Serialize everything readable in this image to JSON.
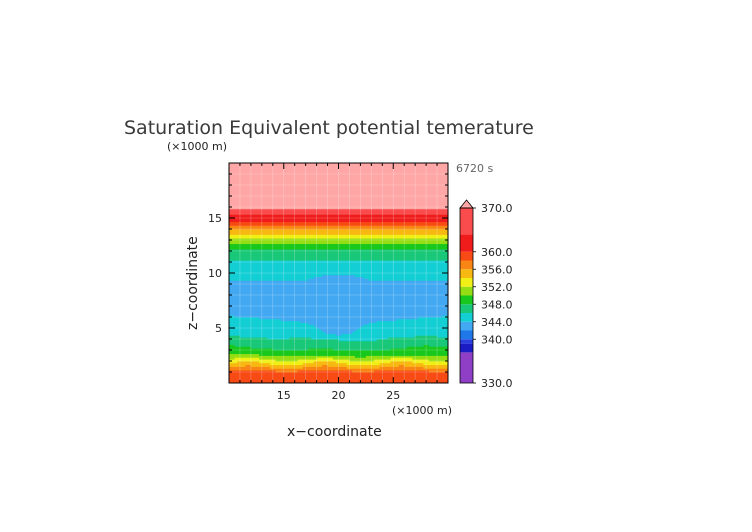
{
  "chart_data": {
    "type": "heatmap",
    "title": "Saturation Equivalent potential temerature",
    "xlabel": "x−coordinate",
    "ylabel": "z−coordinate",
    "x_unit": "(×1000 m)",
    "y_unit": "(×1000 m)",
    "time_label": "6720 s",
    "xlim": [
      10,
      30
    ],
    "ylim": [
      0,
      20
    ],
    "x_ticks": [
      15,
      20,
      25
    ],
    "y_ticks": [
      5,
      10,
      15
    ],
    "grid": true,
    "colorbar": {
      "labels": [
        "370.0",
        "360.0",
        "356.0",
        "352.0",
        "348.0",
        "344.0",
        "340.0",
        "330.0"
      ],
      "label_levels": [
        370,
        360,
        356,
        352,
        348,
        344,
        340,
        330
      ],
      "range": [
        330,
        370
      ],
      "bins": [
        {
          "lo": 330,
          "hi": 337,
          "color": "#8e3fc6"
        },
        {
          "lo": 337,
          "hi": 339,
          "color": "#1c1cc4"
        },
        {
          "lo": 339,
          "hi": 340,
          "color": "#2a3ee0"
        },
        {
          "lo": 340,
          "hi": 342,
          "color": "#1e78e8"
        },
        {
          "lo": 342,
          "hi": 344,
          "color": "#42a8f2"
        },
        {
          "lo": 344,
          "hi": 346,
          "color": "#13cfd4"
        },
        {
          "lo": 346,
          "hi": 348,
          "color": "#18c878"
        },
        {
          "lo": 348,
          "hi": 350,
          "color": "#18c81c"
        },
        {
          "lo": 350,
          "hi": 352,
          "color": "#96de14"
        },
        {
          "lo": 352,
          "hi": 354,
          "color": "#f0ef16"
        },
        {
          "lo": 354,
          "hi": 356,
          "color": "#f8b812"
        },
        {
          "lo": 356,
          "hi": 358,
          "color": "#f88514"
        },
        {
          "lo": 358,
          "hi": 360,
          "color": "#f84a14"
        },
        {
          "lo": 360,
          "hi": 364,
          "color": "#f01c1c"
        },
        {
          "lo": 364,
          "hi": 370,
          "color": "#fa4c4c"
        },
        {
          "lo": 370,
          "hi": 400,
          "color": "#ffa6a6"
        }
      ]
    },
    "profile": {
      "z": [
        0,
        0.8,
        1.6,
        2.6,
        3.6,
        4.5,
        5.5,
        7.0,
        8.5,
        10.0,
        11.0,
        12.0,
        13.0,
        14.0,
        14.7,
        15.3,
        16.0,
        20.0
      ],
      "value": [
        358,
        360,
        355,
        350,
        347,
        345.5,
        344.5,
        343.5,
        343.5,
        344.5,
        345.8,
        347.5,
        351.5,
        356,
        360,
        364,
        372,
        380
      ]
    }
  }
}
